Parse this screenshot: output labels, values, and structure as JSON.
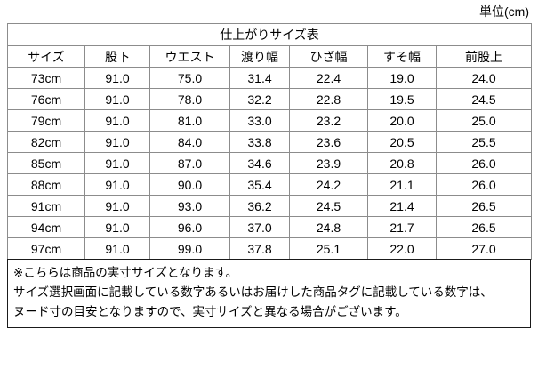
{
  "unit_label": "単位(cm)",
  "table": {
    "title": "仕上がりサイズ表",
    "columns": [
      "サイズ",
      "股下",
      "ウエスト",
      "渡り幅",
      "ひざ幅",
      "すそ幅",
      "前股上"
    ],
    "rows": [
      [
        "73cm",
        "91.0",
        "75.0",
        "31.4",
        "22.4",
        "19.0",
        "24.0"
      ],
      [
        "76cm",
        "91.0",
        "78.0",
        "32.2",
        "22.8",
        "19.5",
        "24.5"
      ],
      [
        "79cm",
        "91.0",
        "81.0",
        "33.0",
        "23.2",
        "20.0",
        "25.0"
      ],
      [
        "82cm",
        "91.0",
        "84.0",
        "33.8",
        "23.6",
        "20.5",
        "25.5"
      ],
      [
        "85cm",
        "91.0",
        "87.0",
        "34.6",
        "23.9",
        "20.8",
        "26.0"
      ],
      [
        "88cm",
        "91.0",
        "90.0",
        "35.4",
        "24.2",
        "21.1",
        "26.0"
      ],
      [
        "91cm",
        "91.0",
        "93.0",
        "36.2",
        "24.5",
        "21.4",
        "26.5"
      ],
      [
        "94cm",
        "91.0",
        "96.0",
        "37.0",
        "24.8",
        "21.7",
        "26.5"
      ],
      [
        "97cm",
        "91.0",
        "99.0",
        "37.8",
        "25.1",
        "22.0",
        "27.0"
      ]
    ]
  },
  "notes": [
    "※こちらは商品の実寸サイズとなります。",
    "サイズ選択画面に記載している数字あるいはお届けした商品タグに記載している数字は、",
    "ヌード寸の目安となりますので、実寸サイズと異なる場合がございます。"
  ]
}
